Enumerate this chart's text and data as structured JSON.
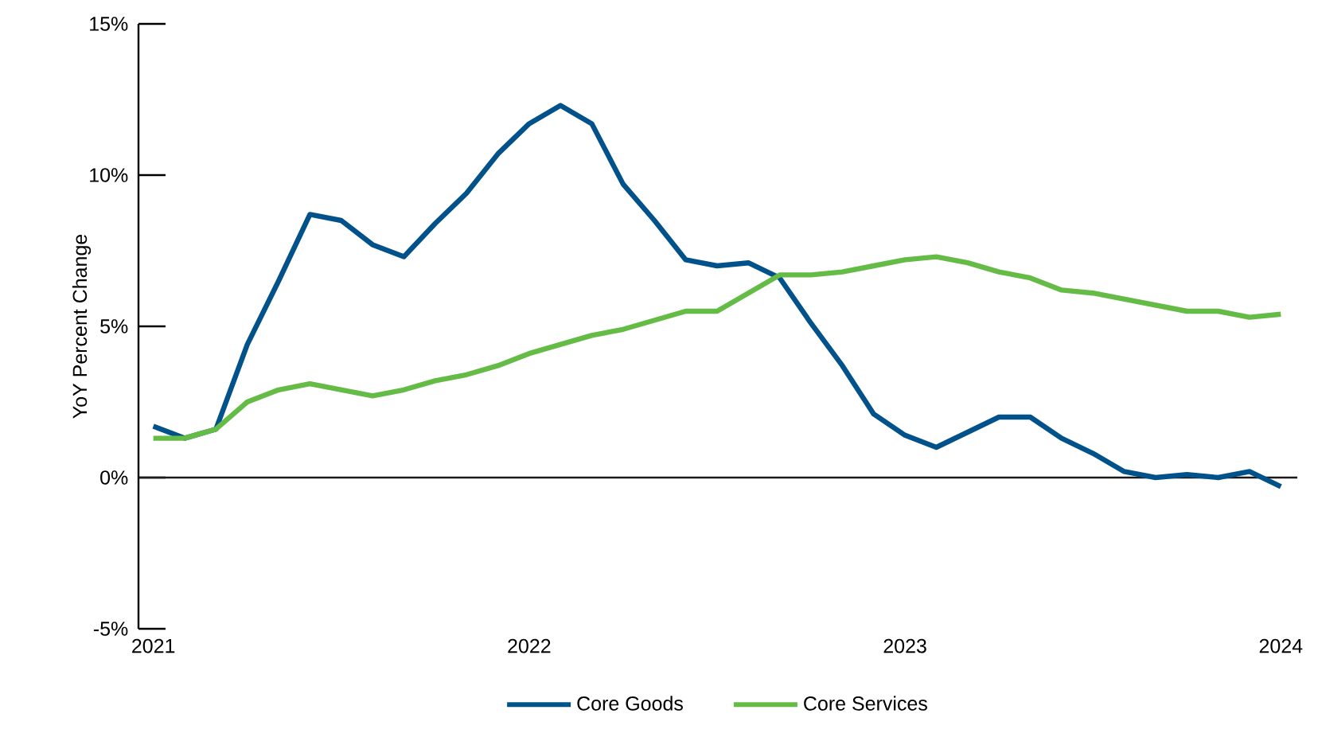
{
  "chart_data": {
    "type": "line",
    "ylabel": "YoY Percent Change",
    "x": [
      "2021-01",
      "2021-02",
      "2021-03",
      "2021-04",
      "2021-05",
      "2021-06",
      "2021-07",
      "2021-08",
      "2021-09",
      "2021-10",
      "2021-11",
      "2021-12",
      "2022-01",
      "2022-02",
      "2022-03",
      "2022-04",
      "2022-05",
      "2022-06",
      "2022-07",
      "2022-08",
      "2022-09",
      "2022-10",
      "2022-11",
      "2022-12",
      "2023-01",
      "2023-02",
      "2023-03",
      "2023-04",
      "2023-05",
      "2023-06",
      "2023-07",
      "2023-08",
      "2023-09",
      "2023-10",
      "2023-11",
      "2023-12",
      "2024-01"
    ],
    "series": [
      {
        "name": "Core Goods",
        "color": "#01528a",
        "values": [
          1.7,
          1.3,
          1.6,
          4.4,
          6.5,
          8.7,
          8.5,
          7.7,
          7.3,
          8.4,
          9.4,
          10.7,
          11.7,
          12.3,
          11.7,
          9.7,
          8.5,
          7.2,
          7.0,
          7.1,
          6.6,
          5.1,
          3.7,
          2.1,
          1.4,
          1.0,
          1.5,
          2.0,
          2.0,
          1.3,
          0.8,
          0.2,
          0.0,
          0.1,
          0.0,
          0.2,
          -0.3
        ]
      },
      {
        "name": "Core Services",
        "color": "#64bc46",
        "values": [
          1.3,
          1.3,
          1.6,
          2.5,
          2.9,
          3.1,
          2.9,
          2.7,
          2.9,
          3.2,
          3.4,
          3.7,
          4.1,
          4.4,
          4.7,
          4.9,
          5.2,
          5.5,
          5.5,
          6.1,
          6.7,
          6.7,
          6.8,
          7.0,
          7.2,
          7.3,
          7.1,
          6.8,
          6.6,
          6.2,
          6.1,
          5.9,
          5.7,
          5.5,
          5.5,
          5.3,
          5.4
        ]
      }
    ],
    "xlim": [
      "2020-12-17",
      "2024-01-17"
    ],
    "xticks": [
      "2021",
      "2022",
      "2023",
      "2024"
    ],
    "ylim": [
      -5,
      15
    ],
    "yticks": [
      {
        "value": -5,
        "label": "-5%"
      },
      {
        "value": 0,
        "label": "0%"
      },
      {
        "value": 5,
        "label": "5%"
      },
      {
        "value": 10,
        "label": "10%"
      },
      {
        "value": 15,
        "label": "15%"
      }
    ],
    "ref_lines": [
      {
        "axis": "y",
        "value": 0,
        "color": "#1a1a1a"
      }
    ],
    "legend": "bottom",
    "line_style": "solid"
  }
}
